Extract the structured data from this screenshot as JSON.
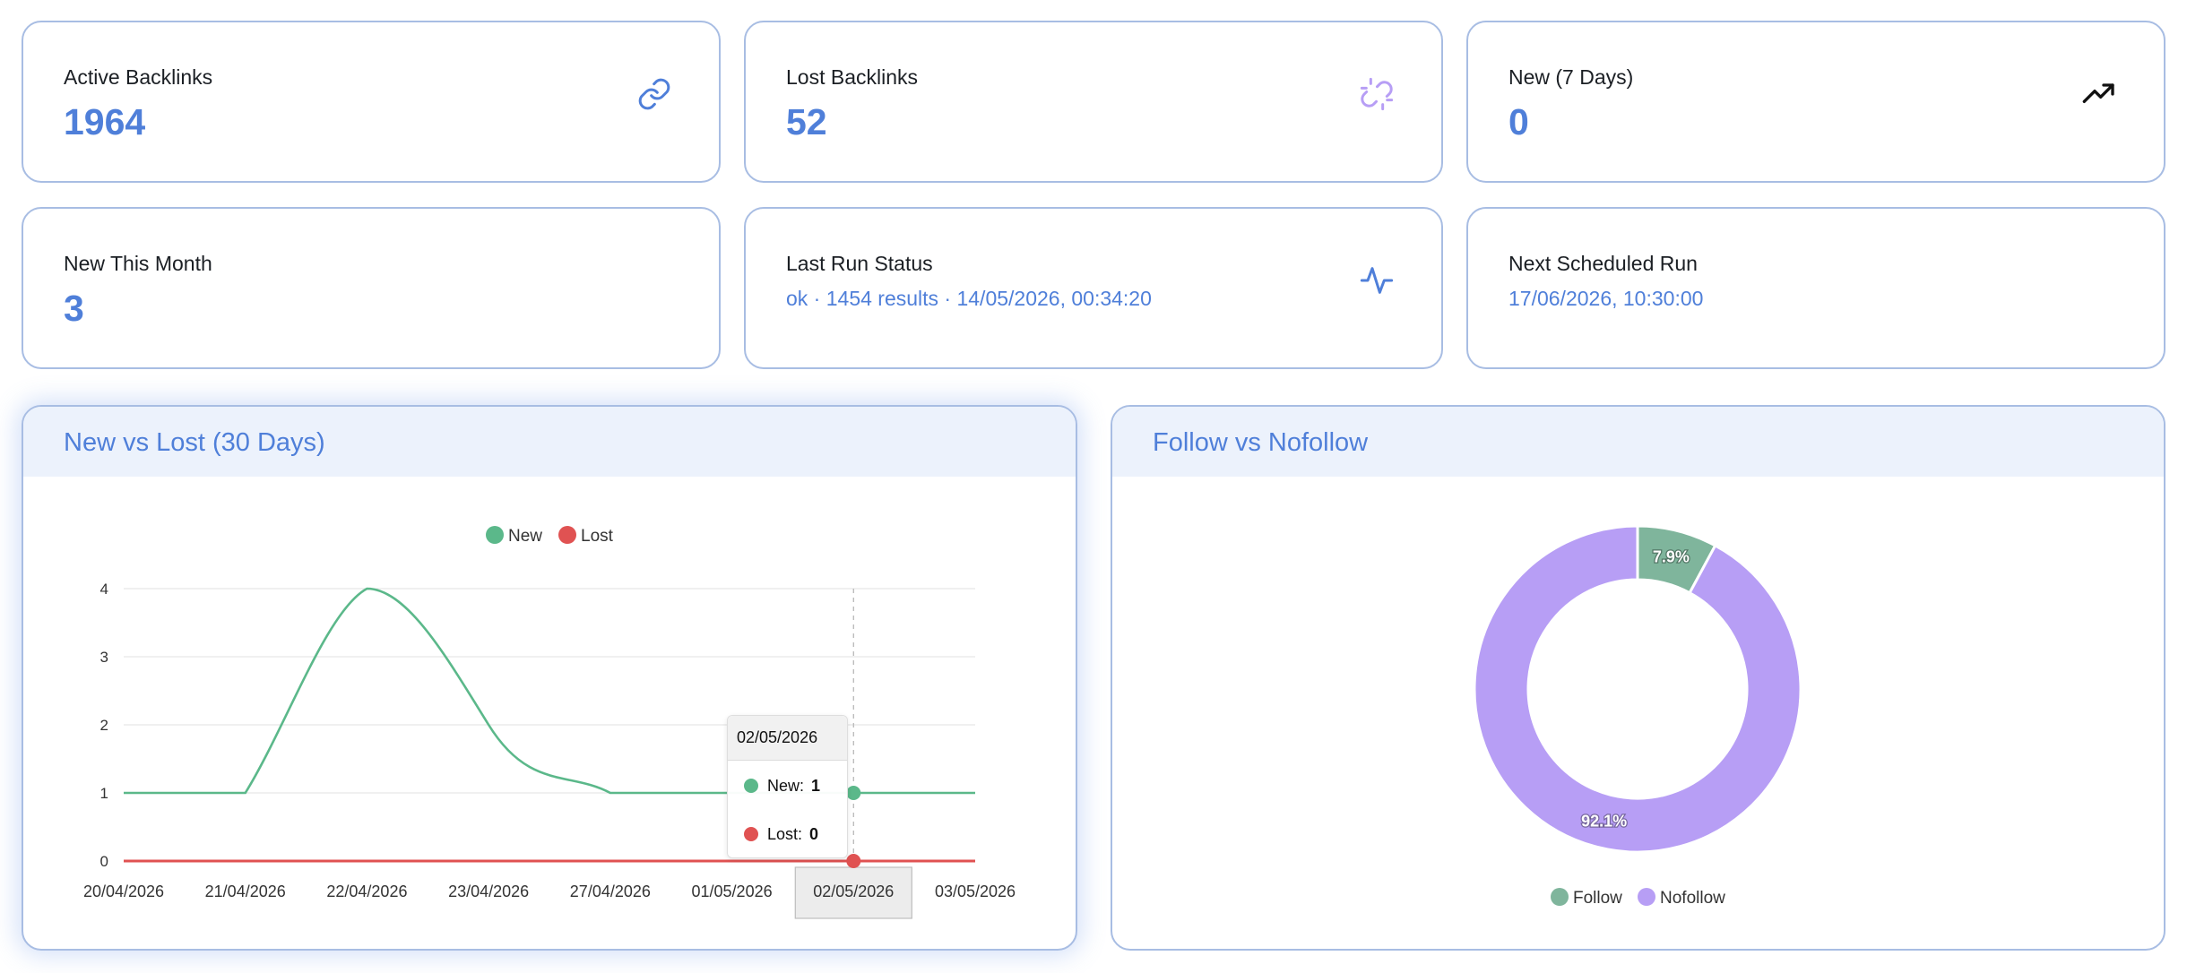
{
  "stats": [
    {
      "label": "Active Backlinks",
      "value": "1964",
      "icon": "link-icon"
    },
    {
      "label": "Lost Backlinks",
      "value": "52",
      "icon": "broken-link-icon"
    },
    {
      "label": "New (7 Days)",
      "value": "0",
      "icon": "trending-up-icon"
    },
    {
      "label": "New This Month",
      "value": "3"
    },
    {
      "label": "Last Run Status",
      "value": "ok · 1454 results · 14/05/2026, 00:34:20",
      "icon": "activity-pulse-icon"
    },
    {
      "label": "Next Scheduled Run",
      "value": "17/06/2026, 10:30:00"
    }
  ],
  "colors": {
    "accent": "#4f7fd9",
    "new": "#5bb88a",
    "lost": "#e05252",
    "follow": "#7fb59c",
    "nofollow": "#b79ef5"
  },
  "line_panel": {
    "title": "New vs Lost (30 Days)",
    "legend": [
      "New",
      "Lost"
    ],
    "tooltip": {
      "title": "02/05/2026",
      "new_label": "New:",
      "new_value": "1",
      "lost_label": "Lost:",
      "lost_value": "0"
    }
  },
  "pie_panel": {
    "title": "Follow vs Nofollow",
    "legend": [
      "Follow",
      "Nofollow"
    ]
  },
  "chart_data": [
    {
      "type": "line",
      "categories": [
        "20/04/2026",
        "21/04/2026",
        "22/04/2026",
        "23/04/2026",
        "27/04/2026",
        "01/05/2026",
        "02/05/2026",
        "03/05/2026"
      ],
      "series": [
        {
          "name": "New",
          "values": [
            1,
            1,
            4,
            2,
            1,
            1,
            1,
            1
          ]
        },
        {
          "name": "Lost",
          "values": [
            0,
            0,
            0,
            0,
            0,
            0,
            0,
            0
          ]
        }
      ],
      "yticks": [
        0,
        1,
        2,
        3,
        4
      ],
      "ylim": [
        0,
        4
      ],
      "highlight_category": "02/05/2026",
      "grid": true,
      "legend_position": "top"
    },
    {
      "type": "pie",
      "donut": true,
      "labels": [
        "Follow",
        "Nofollow"
      ],
      "values": [
        7.9,
        92.1
      ],
      "value_labels": [
        "7.9%",
        "92.1%"
      ],
      "legend_position": "bottom"
    }
  ]
}
